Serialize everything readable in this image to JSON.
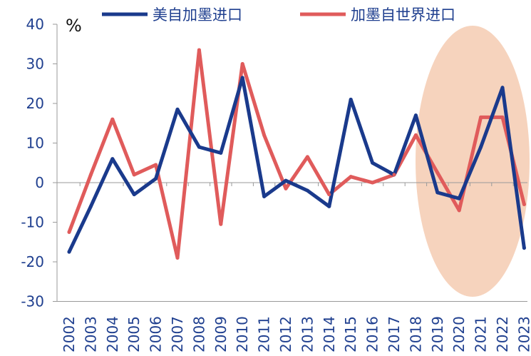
{
  "chart_data": {
    "type": "line",
    "title": "",
    "xlabel": "",
    "ylabel": "%",
    "ylim": [
      -30,
      40
    ],
    "yticks": [
      40,
      30,
      20,
      10,
      0,
      -10,
      -20,
      -30
    ],
    "categories": [
      "2002",
      "2003",
      "2004",
      "2005",
      "2006",
      "2007",
      "2008",
      "2009",
      "2010",
      "2011",
      "2012",
      "2013",
      "2014",
      "2015",
      "2016",
      "2017",
      "2018",
      "2019",
      "2020",
      "2021",
      "2022",
      "2023"
    ],
    "series": [
      {
        "name": "美自加墨进口",
        "color": "#1a3a8c",
        "values": [
          -17.5,
          -6,
          6,
          -3,
          1,
          18.5,
          9,
          7.5,
          26.5,
          -3.5,
          0.5,
          -2,
          -6,
          21,
          5,
          2,
          17,
          -2.5,
          -4,
          9,
          24,
          -16.5
        ]
      },
      {
        "name": "加墨自世界进口",
        "color": "#e05b5b",
        "values": [
          -12.5,
          2,
          16,
          2,
          4.5,
          -19,
          33.5,
          -10.5,
          30,
          12,
          -1.5,
          6.5,
          -3,
          1.5,
          0,
          2,
          12,
          2.5,
          -7,
          16.5,
          16.5,
          -5.5
        ]
      }
    ],
    "highlight_color": "#f6d3bd",
    "grid": false,
    "legend": "top"
  }
}
